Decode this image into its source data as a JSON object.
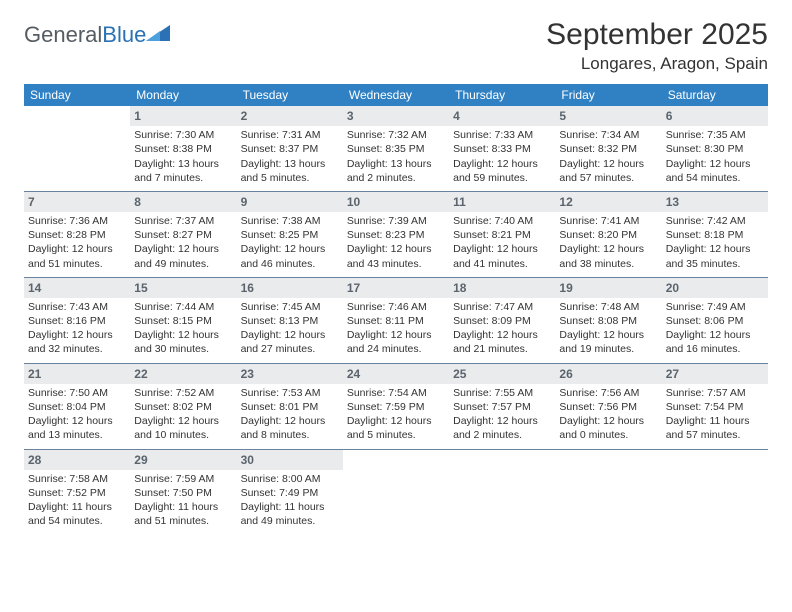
{
  "brand": {
    "name_gray": "General",
    "name_blue": "Blue"
  },
  "title": "September 2025",
  "location": "Longares, Aragon, Spain",
  "colors": {
    "header_bg": "#3081c4",
    "header_text": "#ffffff",
    "daynum_bg": "#e9ebed",
    "daynum_text": "#5b646d",
    "rule": "#6882a0",
    "logo_gray": "#555c63",
    "logo_blue": "#2a72b5"
  },
  "day_names": [
    "Sunday",
    "Monday",
    "Tuesday",
    "Wednesday",
    "Thursday",
    "Friday",
    "Saturday"
  ],
  "weeks": [
    [
      null,
      {
        "n": "1",
        "sr": "7:30 AM",
        "ss": "8:38 PM",
        "dl": "13 hours and 7 minutes."
      },
      {
        "n": "2",
        "sr": "7:31 AM",
        "ss": "8:37 PM",
        "dl": "13 hours and 5 minutes."
      },
      {
        "n": "3",
        "sr": "7:32 AM",
        "ss": "8:35 PM",
        "dl": "13 hours and 2 minutes."
      },
      {
        "n": "4",
        "sr": "7:33 AM",
        "ss": "8:33 PM",
        "dl": "12 hours and 59 minutes."
      },
      {
        "n": "5",
        "sr": "7:34 AM",
        "ss": "8:32 PM",
        "dl": "12 hours and 57 minutes."
      },
      {
        "n": "6",
        "sr": "7:35 AM",
        "ss": "8:30 PM",
        "dl": "12 hours and 54 minutes."
      }
    ],
    [
      {
        "n": "7",
        "sr": "7:36 AM",
        "ss": "8:28 PM",
        "dl": "12 hours and 51 minutes."
      },
      {
        "n": "8",
        "sr": "7:37 AM",
        "ss": "8:27 PM",
        "dl": "12 hours and 49 minutes."
      },
      {
        "n": "9",
        "sr": "7:38 AM",
        "ss": "8:25 PM",
        "dl": "12 hours and 46 minutes."
      },
      {
        "n": "10",
        "sr": "7:39 AM",
        "ss": "8:23 PM",
        "dl": "12 hours and 43 minutes."
      },
      {
        "n": "11",
        "sr": "7:40 AM",
        "ss": "8:21 PM",
        "dl": "12 hours and 41 minutes."
      },
      {
        "n": "12",
        "sr": "7:41 AM",
        "ss": "8:20 PM",
        "dl": "12 hours and 38 minutes."
      },
      {
        "n": "13",
        "sr": "7:42 AM",
        "ss": "8:18 PM",
        "dl": "12 hours and 35 minutes."
      }
    ],
    [
      {
        "n": "14",
        "sr": "7:43 AM",
        "ss": "8:16 PM",
        "dl": "12 hours and 32 minutes."
      },
      {
        "n": "15",
        "sr": "7:44 AM",
        "ss": "8:15 PM",
        "dl": "12 hours and 30 minutes."
      },
      {
        "n": "16",
        "sr": "7:45 AM",
        "ss": "8:13 PM",
        "dl": "12 hours and 27 minutes."
      },
      {
        "n": "17",
        "sr": "7:46 AM",
        "ss": "8:11 PM",
        "dl": "12 hours and 24 minutes."
      },
      {
        "n": "18",
        "sr": "7:47 AM",
        "ss": "8:09 PM",
        "dl": "12 hours and 21 minutes."
      },
      {
        "n": "19",
        "sr": "7:48 AM",
        "ss": "8:08 PM",
        "dl": "12 hours and 19 minutes."
      },
      {
        "n": "20",
        "sr": "7:49 AM",
        "ss": "8:06 PM",
        "dl": "12 hours and 16 minutes."
      }
    ],
    [
      {
        "n": "21",
        "sr": "7:50 AM",
        "ss": "8:04 PM",
        "dl": "12 hours and 13 minutes."
      },
      {
        "n": "22",
        "sr": "7:52 AM",
        "ss": "8:02 PM",
        "dl": "12 hours and 10 minutes."
      },
      {
        "n": "23",
        "sr": "7:53 AM",
        "ss": "8:01 PM",
        "dl": "12 hours and 8 minutes."
      },
      {
        "n": "24",
        "sr": "7:54 AM",
        "ss": "7:59 PM",
        "dl": "12 hours and 5 minutes."
      },
      {
        "n": "25",
        "sr": "7:55 AM",
        "ss": "7:57 PM",
        "dl": "12 hours and 2 minutes."
      },
      {
        "n": "26",
        "sr": "7:56 AM",
        "ss": "7:56 PM",
        "dl": "12 hours and 0 minutes."
      },
      {
        "n": "27",
        "sr": "7:57 AM",
        "ss": "7:54 PM",
        "dl": "11 hours and 57 minutes."
      }
    ],
    [
      {
        "n": "28",
        "sr": "7:58 AM",
        "ss": "7:52 PM",
        "dl": "11 hours and 54 minutes."
      },
      {
        "n": "29",
        "sr": "7:59 AM",
        "ss": "7:50 PM",
        "dl": "11 hours and 51 minutes."
      },
      {
        "n": "30",
        "sr": "8:00 AM",
        "ss": "7:49 PM",
        "dl": "11 hours and 49 minutes."
      },
      null,
      null,
      null,
      null
    ]
  ],
  "labels": {
    "sunrise": "Sunrise:",
    "sunset": "Sunset:",
    "daylight": "Daylight:"
  }
}
